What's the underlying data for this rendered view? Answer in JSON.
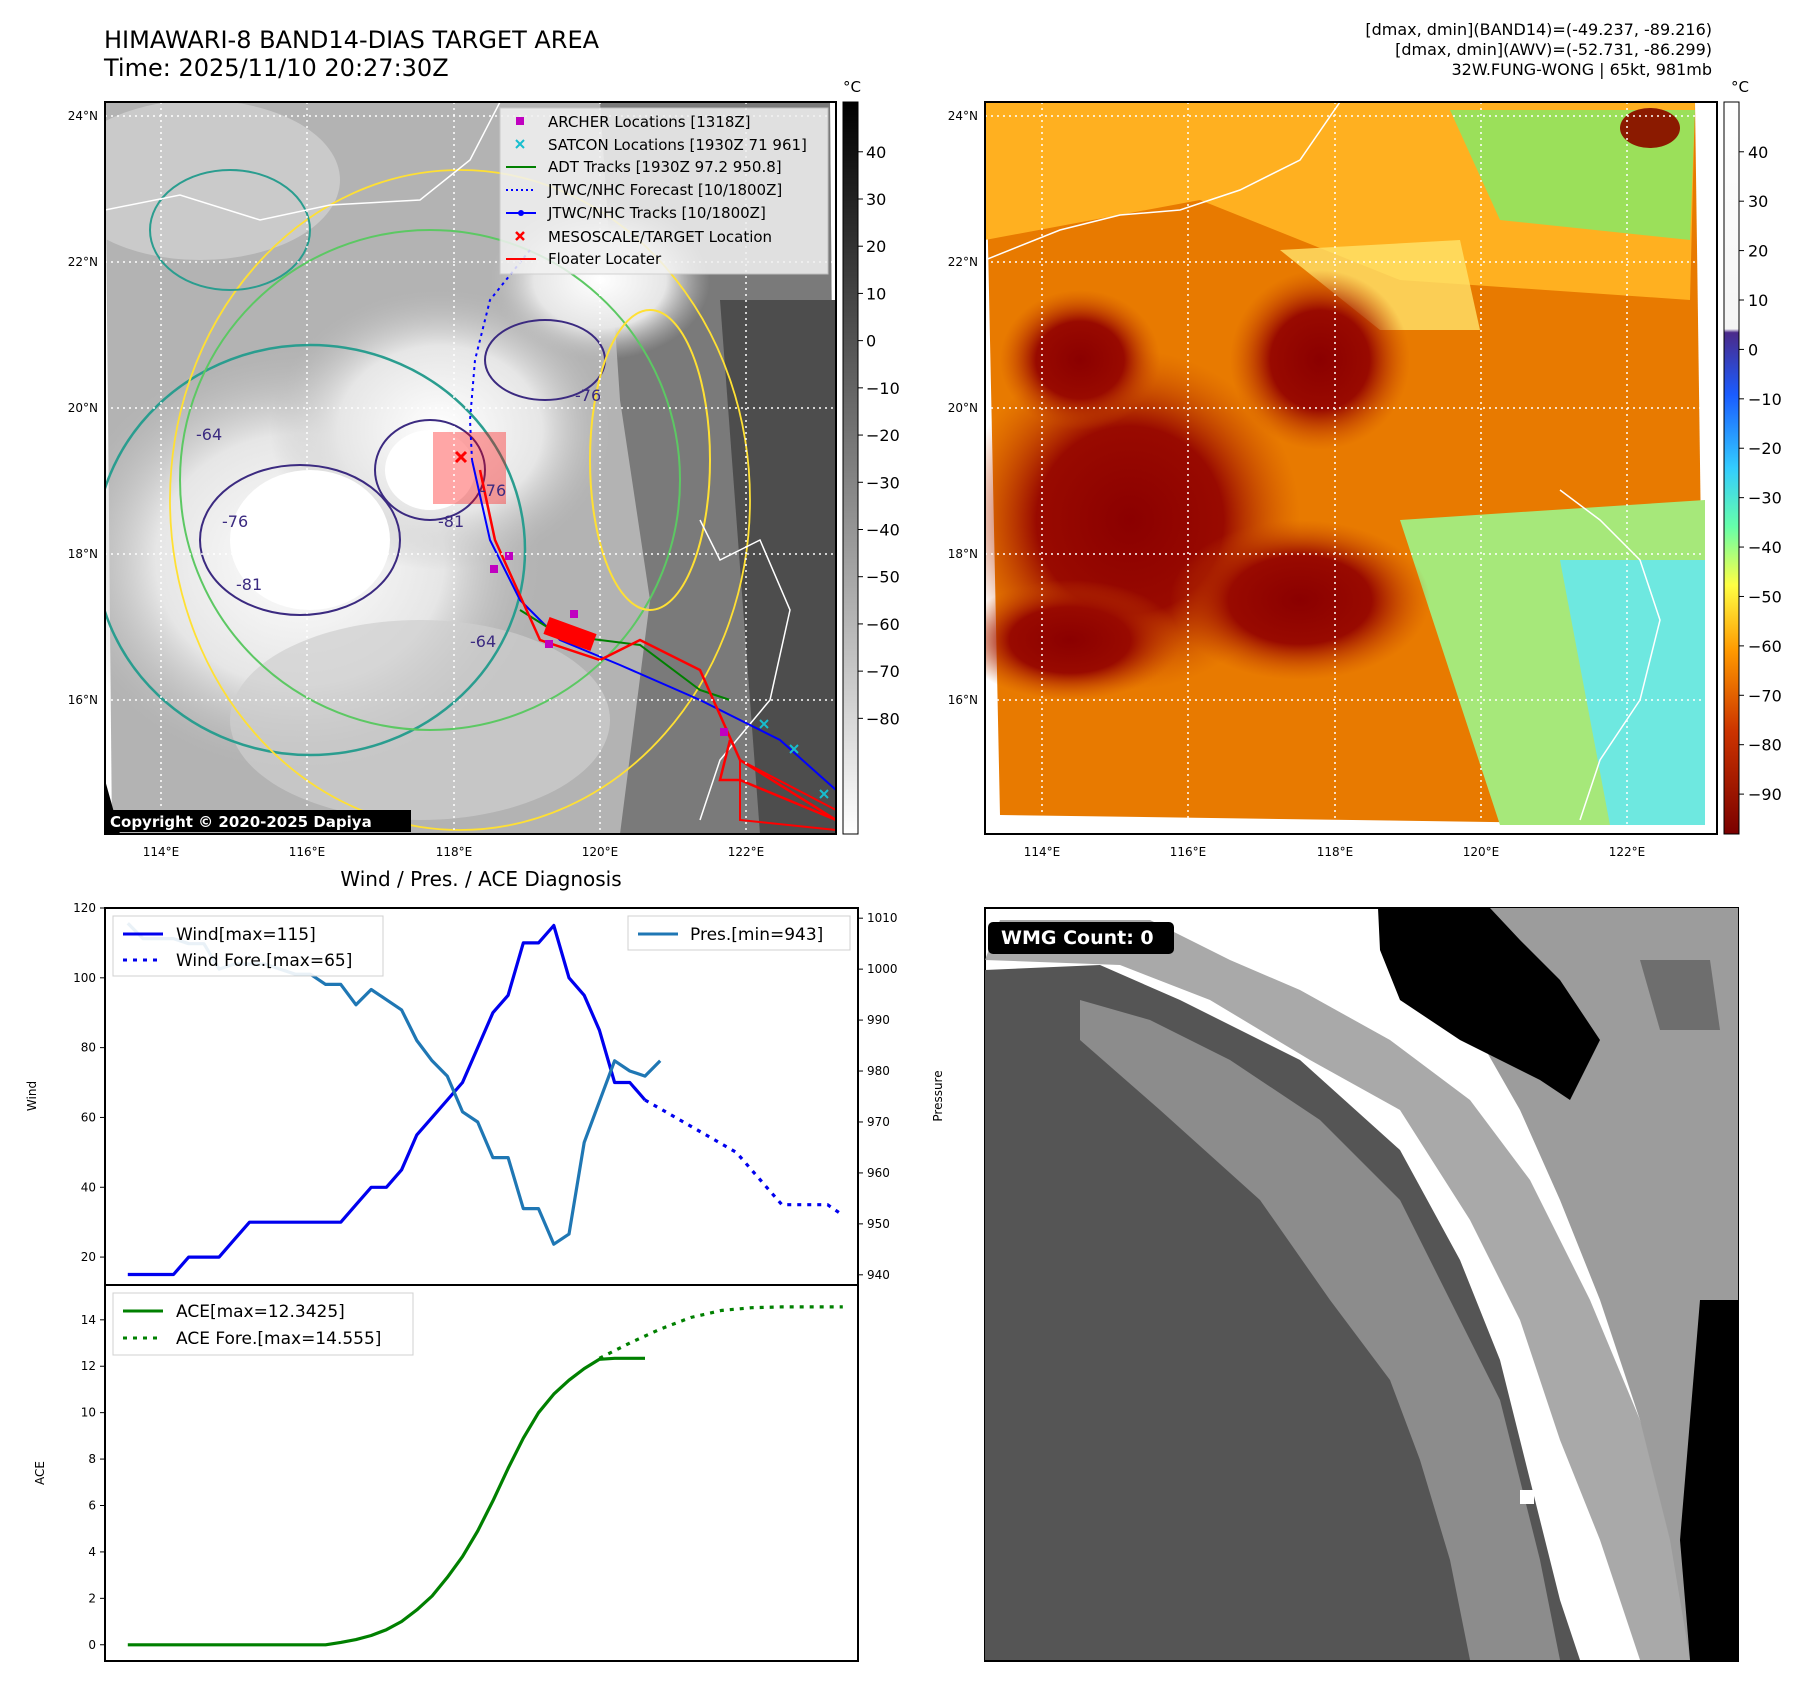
{
  "header": {
    "title": "HIMAWARI-8 BAND14-DIAS TARGET AREA",
    "time": "Time: 2025/11/10 20:27:30Z",
    "info_lines": [
      "[dmax, dmin](BAND14)=(-49.237, -89.216)",
      "[dmax, dmin](AWV)=(-52.731, -86.299)",
      "32W.FUNG-WONG | 65kt, 981mb"
    ]
  },
  "map_panel": {
    "lon_ticks": [
      "114°E",
      "116°E",
      "118°E",
      "120°E",
      "122°E"
    ],
    "lat_ticks": [
      "24°N",
      "22°N",
      "20°N",
      "18°N",
      "16°N"
    ],
    "contour_labels": [
      "-64",
      "-76",
      "-81",
      "-76",
      "-81",
      "-64",
      "-76",
      "-81",
      "-76"
    ],
    "copyright": "Copyright © 2020-2025 Dapiya",
    "legend": [
      {
        "label": "ARCHER Locations [1318Z]",
        "marker": "square",
        "color": "#c000c0"
      },
      {
        "label": "SATCON Locations [1930Z 71 961]",
        "marker": "x",
        "color": "#17becf"
      },
      {
        "label": "ADT Tracks [1930Z 97.2 950.8]",
        "marker": "line",
        "color": "#008000"
      },
      {
        "label": "JTWC/NHC Forecast [10/1800Z]",
        "marker": "dotted",
        "color": "#0000ff"
      },
      {
        "label": "JTWC/NHC Tracks [10/1800Z]",
        "marker": "line-dot",
        "color": "#0000ff"
      },
      {
        "label": "MESOSCALE/TARGET Location",
        "marker": "x",
        "color": "#ff0000"
      },
      {
        "label": "Floater Locater",
        "marker": "line",
        "color": "#ff0000"
      }
    ],
    "colorbar": {
      "unit": "°C",
      "ticks": [
        "40",
        "30",
        "20",
        "10",
        "0",
        "−10",
        "−20",
        "−30",
        "−40",
        "−50",
        "−60",
        "−70",
        "−80"
      ]
    }
  },
  "awv_panel": {
    "lon_ticks": [
      "114°E",
      "116°E",
      "118°E",
      "120°E",
      "122°E"
    ],
    "lat_ticks": [
      "24°N",
      "22°N",
      "20°N",
      "18°N",
      "16°N"
    ],
    "colorbar": {
      "unit": "°C",
      "ticks": [
        "40",
        "30",
        "20",
        "10",
        "0",
        "−10",
        "−20",
        "−30",
        "−40",
        "−50",
        "−60",
        "−70",
        "−80",
        "−90"
      ]
    }
  },
  "wmg_panel": {
    "badge": "WMG Count: 0"
  },
  "chart_data": [
    {
      "type": "line",
      "title": "Wind / Pres. / ACE Diagnosis",
      "ylabel": "Wind",
      "y2label": "Pressure",
      "ylim": [
        12,
        120
      ],
      "y2lim": [
        938,
        1012
      ],
      "yticks": [
        20,
        40,
        60,
        80,
        100,
        120
      ],
      "y2ticks": [
        940,
        950,
        960,
        970,
        980,
        990,
        1000,
        1010
      ],
      "legend_left": [
        "Wind[max=115]",
        "Wind Fore.[max=65]"
      ],
      "legend_right": [
        "Pres.[min=943]"
      ],
      "series": [
        {
          "name": "Wind[max=115]",
          "color": "#0000ee",
          "style": "solid",
          "axis": "y",
          "x": [
            0,
            1,
            2,
            3,
            4,
            5,
            6,
            7,
            8,
            9,
            10,
            11,
            12,
            13,
            14,
            15,
            16,
            17,
            18,
            19,
            20,
            21,
            22,
            23,
            24,
            25,
            26,
            27,
            28,
            29,
            30,
            31,
            32,
            33,
            34
          ],
          "values": [
            15,
            15,
            15,
            15,
            20,
            20,
            20,
            25,
            30,
            30,
            30,
            30,
            30,
            30,
            30,
            35,
            40,
            40,
            45,
            55,
            60,
            65,
            70,
            80,
            90,
            95,
            110,
            110,
            115,
            100,
            95,
            85,
            70,
            70,
            65
          ]
        },
        {
          "name": "Wind Fore.[max=65]",
          "color": "#0000ee",
          "style": "dotted",
          "axis": "y",
          "x": [
            34,
            36,
            38,
            40,
            41,
            42,
            43,
            44,
            45,
            46,
            47
          ],
          "values": [
            65,
            60,
            55,
            50,
            45,
            40,
            35,
            35,
            35,
            35,
            32
          ]
        },
        {
          "name": "Pres.[min=943]",
          "color": "#1f77b4",
          "style": "solid",
          "axis": "y2",
          "x": [
            0,
            1,
            2,
            3,
            4,
            5,
            6,
            7,
            8,
            9,
            10,
            11,
            12,
            13,
            14,
            15,
            16,
            17,
            18,
            19,
            20,
            21,
            22,
            23,
            24,
            25,
            26,
            27,
            28,
            29,
            30,
            31,
            32,
            33,
            34,
            35
          ],
          "values": [
            1009,
            1006,
            1006,
            1006,
            1005,
            1005,
            1000,
            1001,
            1001,
            1001,
            1000,
            999,
            999,
            997,
            997,
            993,
            996,
            994,
            992,
            986,
            982,
            979,
            972,
            970,
            963,
            963,
            953,
            953,
            946,
            948,
            966,
            974,
            982,
            980,
            979,
            982
          ]
        }
      ]
    },
    {
      "type": "line",
      "ylabel": "ACE",
      "ylim": [
        -0.7,
        15.5
      ],
      "yticks": [
        0,
        2,
        4,
        6,
        8,
        10,
        12,
        14
      ],
      "legend": [
        "ACE[max=12.3425]",
        "ACE Fore.[max=14.555]"
      ],
      "series": [
        {
          "name": "ACE[max=12.3425]",
          "color": "#008000",
          "style": "solid",
          "x": [
            0,
            13,
            14,
            15,
            16,
            17,
            18,
            19,
            20,
            21,
            22,
            23,
            24,
            25,
            26,
            27,
            28,
            29,
            30,
            31,
            32,
            33,
            34
          ],
          "values": [
            0,
            0,
            0.1,
            0.22,
            0.4,
            0.65,
            1.0,
            1.5,
            2.1,
            2.9,
            3.8,
            4.9,
            6.2,
            7.6,
            8.9,
            10.0,
            10.8,
            11.4,
            11.9,
            12.3,
            12.34,
            12.34,
            12.34
          ]
        },
        {
          "name": "ACE Fore.[max=14.555]",
          "color": "#008000",
          "style": "dotted",
          "x": [
            31,
            33,
            35,
            37,
            39,
            41,
            43,
            45,
            47
          ],
          "values": [
            12.3425,
            13.0,
            13.6,
            14.1,
            14.4,
            14.52,
            14.555,
            14.555,
            14.555
          ]
        }
      ]
    }
  ]
}
